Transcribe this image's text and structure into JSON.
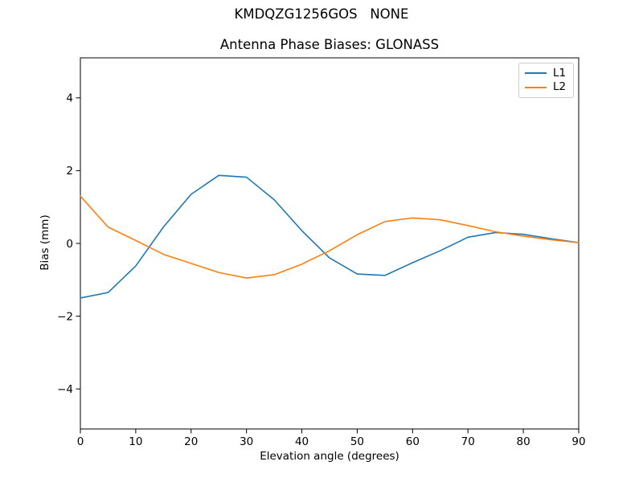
{
  "figure": {
    "suptitle": "KMDQZG1256GOS   NONE"
  },
  "chart_data": {
    "type": "line",
    "title": "Antenna Phase Biases: GLONASS",
    "xlabel": "Elevation angle (degrees)",
    "ylabel": "Bias (mm)",
    "x": [
      0,
      5,
      10,
      15,
      20,
      25,
      30,
      35,
      40,
      45,
      50,
      55,
      60,
      65,
      70,
      75,
      80,
      85,
      90
    ],
    "series": [
      {
        "name": "L1",
        "color": "#1f77b4",
        "values": [
          -1.5,
          -1.35,
          -0.62,
          0.45,
          1.35,
          1.87,
          1.82,
          1.2,
          0.35,
          -0.4,
          -0.84,
          -0.88,
          -0.53,
          -0.2,
          0.17,
          0.3,
          0.25,
          0.13,
          0.02
        ]
      },
      {
        "name": "L2",
        "color": "#ff7f0e",
        "values": [
          1.3,
          0.45,
          0.08,
          -0.3,
          -0.55,
          -0.8,
          -0.95,
          -0.86,
          -0.57,
          -0.2,
          0.24,
          0.6,
          0.7,
          0.65,
          0.49,
          0.32,
          0.2,
          0.1,
          0.02
        ]
      }
    ],
    "xlim": [
      0,
      90
    ],
    "ylim": [
      -5.1,
      5.1
    ],
    "xticks": [
      0,
      10,
      20,
      30,
      40,
      50,
      60,
      70,
      80,
      90
    ],
    "yticks": [
      -4,
      -2,
      0,
      2,
      4
    ],
    "grid": false,
    "legend_position": "upper right"
  }
}
